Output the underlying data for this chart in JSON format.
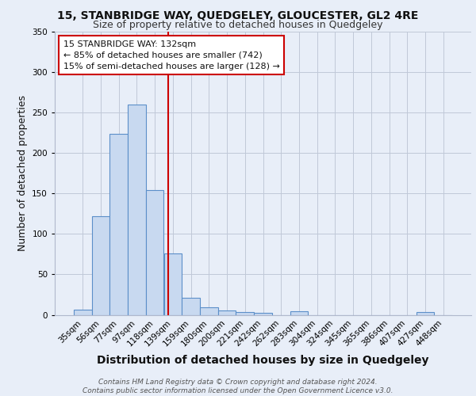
{
  "title": "15, STANBRIDGE WAY, QUEDGELEY, GLOUCESTER, GL2 4RE",
  "subtitle": "Size of property relative to detached houses in Quedgeley",
  "xlabel": "Distribution of detached houses by size in Quedgeley",
  "ylabel": "Number of detached properties",
  "bar_labels": [
    "35sqm",
    "56sqm",
    "77sqm",
    "97sqm",
    "118sqm",
    "139sqm",
    "159sqm",
    "180sqm",
    "200sqm",
    "221sqm",
    "242sqm",
    "262sqm",
    "283sqm",
    "304sqm",
    "324sqm",
    "345sqm",
    "365sqm",
    "386sqm",
    "407sqm",
    "427sqm",
    "448sqm"
  ],
  "bar_values": [
    6,
    122,
    224,
    260,
    154,
    76,
    21,
    9,
    5,
    3,
    2,
    0,
    4,
    0,
    0,
    0,
    0,
    0,
    0,
    3,
    0
  ],
  "bar_color": "#c8d9f0",
  "bar_edge_color": "#5b8fc9",
  "vline_x": 4.72,
  "vline_color": "#cc0000",
  "annotation_text": "15 STANBRIDGE WAY: 132sqm\n← 85% of detached houses are smaller (742)\n15% of semi-detached houses are larger (128) →",
  "annotation_box_color": "#ffffff",
  "annotation_box_edge_color": "#cc0000",
  "ylim": [
    0,
    350
  ],
  "yticks": [
    0,
    50,
    100,
    150,
    200,
    250,
    300,
    350
  ],
  "bg_color": "#e8eef8",
  "plot_bg_color": "#e8eef8",
  "footer_text": "Contains HM Land Registry data © Crown copyright and database right 2024.\nContains public sector information licensed under the Open Government Licence v3.0.",
  "title_fontsize": 10,
  "subtitle_fontsize": 9,
  "xlabel_fontsize": 10,
  "ylabel_fontsize": 9,
  "tick_fontsize": 7.5,
  "annotation_fontsize": 8,
  "footer_fontsize": 6.5
}
